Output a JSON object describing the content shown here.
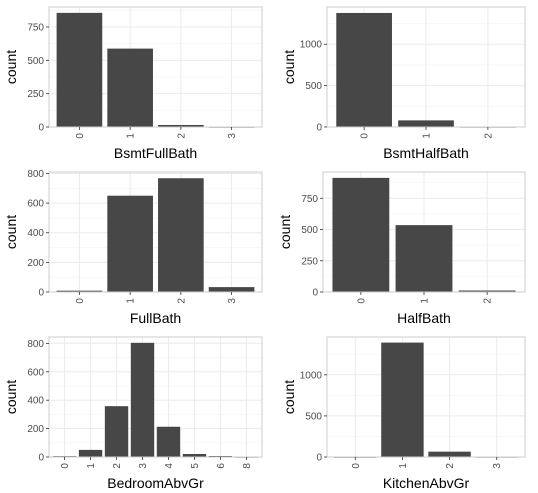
{
  "chart_data": [
    {
      "type": "bar",
      "xlabel": "BsmtFullBath",
      "ylabel": "count",
      "categories": [
        "0",
        "1",
        "2",
        "3"
      ],
      "values": [
        856,
        588,
        15,
        1
      ],
      "ylim": [
        0,
        900
      ],
      "yticks": [
        0,
        250,
        500,
        750
      ],
      "grid": true
    },
    {
      "type": "bar",
      "xlabel": "BsmtHalfBath",
      "ylabel": "count",
      "categories": [
        "0",
        "1",
        "2"
      ],
      "values": [
        1378,
        80,
        2
      ],
      "ylim": [
        0,
        1450
      ],
      "yticks": [
        0,
        500,
        1000
      ],
      "grid": true
    },
    {
      "type": "bar",
      "xlabel": "FullBath",
      "ylabel": "count",
      "categories": [
        "0",
        "1",
        "2",
        "3"
      ],
      "values": [
        9,
        650,
        768,
        33
      ],
      "ylim": [
        0,
        810
      ],
      "yticks": [
        0,
        200,
        400,
        600,
        800
      ],
      "grid": true
    },
    {
      "type": "bar",
      "xlabel": "HalfBath",
      "ylabel": "count",
      "categories": [
        "0",
        "1",
        "2"
      ],
      "values": [
        913,
        535,
        12
      ],
      "ylim": [
        0,
        960
      ],
      "yticks": [
        0,
        250,
        500,
        750
      ],
      "grid": true
    },
    {
      "type": "bar",
      "xlabel": "BedroomAbvGr",
      "ylabel": "count",
      "categories": [
        "0",
        "1",
        "2",
        "3",
        "4",
        "5",
        "6",
        "8"
      ],
      "values": [
        6,
        50,
        358,
        804,
        213,
        21,
        7,
        1
      ],
      "ylim": [
        0,
        845
      ],
      "yticks": [
        0,
        200,
        400,
        600,
        800
      ],
      "grid": true
    },
    {
      "type": "bar",
      "xlabel": "KitchenAbvGr",
      "ylabel": "count",
      "categories": [
        "0",
        "1",
        "2",
        "3"
      ],
      "values": [
        1,
        1392,
        65,
        2
      ],
      "ylim": [
        0,
        1460
      ],
      "yticks": [
        0,
        500,
        1000
      ],
      "grid": true
    }
  ],
  "colors": {
    "bar": "#474747",
    "grid": "#ebebeb",
    "border": "#cccccc"
  }
}
